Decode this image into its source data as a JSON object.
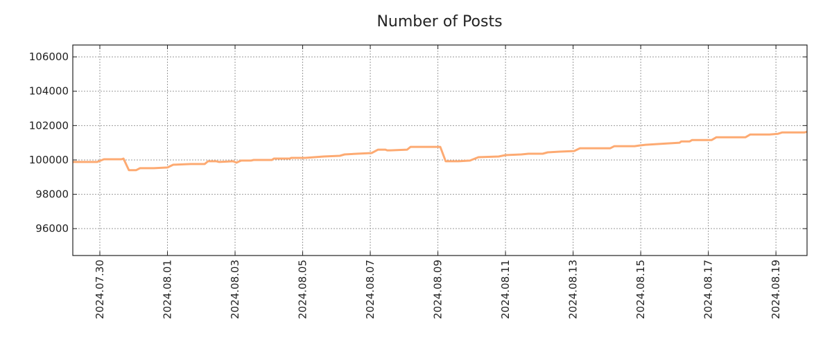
{
  "chart_data": {
    "type": "line",
    "title": "Number of Posts",
    "xlabel": "",
    "ylabel": "",
    "x_unit": "days since 2024.07.30",
    "xlim": [
      -0.8,
      20.92
    ],
    "ylim": [
      94435,
      106690
    ],
    "grid": true,
    "legend": "none",
    "yticks": [
      96000,
      98000,
      100000,
      102000,
      104000,
      106000
    ],
    "ytick_labels": [
      "96000",
      "98000",
      "100000",
      "102000",
      "104000",
      "106000"
    ],
    "xticks": [
      0,
      2,
      4,
      6,
      8,
      10,
      12,
      14,
      16,
      18,
      20
    ],
    "xtick_labels": [
      "2024.07.30",
      "2024.08.01",
      "2024.08.03",
      "2024.08.05",
      "2024.08.07",
      "2024.08.09",
      "2024.08.11",
      "2024.08.13",
      "2024.08.15",
      "2024.08.17",
      "2024.08.19"
    ],
    "series": [
      {
        "name": "Number of Posts",
        "color": "#fdaa72",
        "x": [
          -0.8,
          -0.08,
          0.12,
          0.64,
          0.7,
          0.86,
          1.07,
          1.19,
          1.6,
          2.0,
          2.17,
          2.69,
          3.1,
          3.2,
          3.45,
          3.53,
          3.94,
          4.04,
          4.18,
          4.47,
          4.55,
          5.09,
          5.15,
          5.62,
          5.66,
          6.07,
          6.62,
          7.1,
          7.24,
          7.61,
          8.04,
          8.23,
          8.45,
          8.5,
          8.6,
          9.09,
          9.19,
          10.07,
          10.23,
          10.62,
          10.95,
          11.2,
          11.8,
          12.0,
          12.47,
          12.68,
          13.1,
          13.25,
          13.6,
          14.03,
          14.2,
          15.1,
          15.22,
          15.82,
          15.96,
          16.14,
          16.8,
          17.15,
          17.2,
          17.45,
          17.52,
          18.1,
          18.24,
          19.1,
          19.24,
          19.81,
          20.06,
          20.18,
          20.84,
          20.92
        ],
        "y": [
          99880,
          99880,
          100040,
          100040,
          100080,
          99400,
          99400,
          99520,
          99520,
          99560,
          99720,
          99760,
          99760,
          99920,
          99920,
          99880,
          99920,
          99840,
          99960,
          99960,
          100000,
          100000,
          100080,
          100080,
          100120,
          100120,
          100200,
          100240,
          100320,
          100360,
          100400,
          100600,
          100600,
          100560,
          100560,
          100600,
          100760,
          100760,
          99920,
          99920,
          99960,
          100160,
          100200,
          100280,
          100320,
          100360,
          100360,
          100440,
          100480,
          100520,
          100680,
          100680,
          100800,
          100800,
          100840,
          100880,
          100960,
          101000,
          101080,
          101080,
          101160,
          101160,
          101320,
          101320,
          101480,
          101480,
          101520,
          101600,
          101600,
          101640
        ]
      }
    ]
  }
}
